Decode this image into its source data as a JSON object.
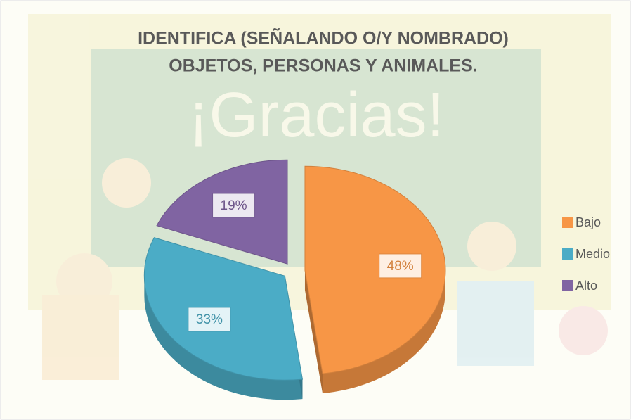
{
  "chart_data": {
    "type": "pie",
    "title": [
      "IDENTIFICA (SEÑALANDO O/Y NOMBRADO)",
      "OBJETOS, PERSONAS Y ANIMALES."
    ],
    "categories": [
      "Bajo",
      "Medio",
      "Alto"
    ],
    "values": [
      48,
      33,
      19
    ],
    "value_labels": [
      "48%",
      "33%",
      "19%"
    ],
    "colors": [
      "#f79646",
      "#4bacc6",
      "#8064a2"
    ],
    "legend": "right"
  }
}
